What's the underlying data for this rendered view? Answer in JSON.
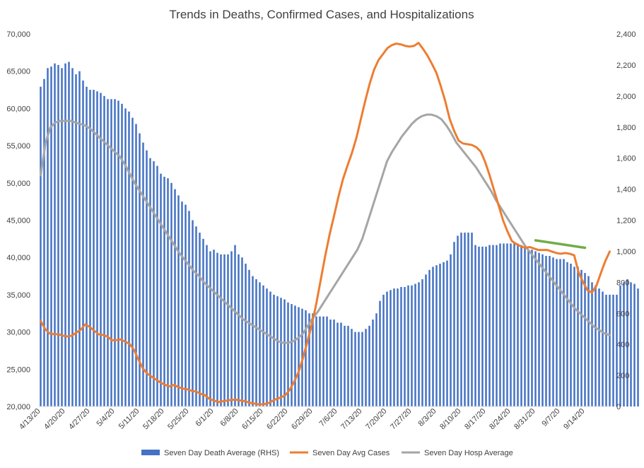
{
  "chart_data": {
    "type": "bar+line",
    "title": "Trends in Deaths, Confirmed Cases, and Hospitalizations",
    "x_start_date": "2020-04-13",
    "x_tick_labels": [
      "4/13/20",
      "4/20/20",
      "4/27/20",
      "5/4/20",
      "5/11/20",
      "5/18/20",
      "5/25/20",
      "6/1/20",
      "6/8/20",
      "6/15/20",
      "6/22/20",
      "6/29/20",
      "7/6/20",
      "7/13/20",
      "7/20/20",
      "7/27/20",
      "8/3/20",
      "8/10/20",
      "8/17/20",
      "8/24/20",
      "8/31/20",
      "9/7/20",
      "9/14/20"
    ],
    "y_left": {
      "min": 20000,
      "max": 70000,
      "ticks": [
        "20,000",
        "25,000",
        "30,000",
        "35,000",
        "40,000",
        "45,000",
        "50,000",
        "55,000",
        "60,000",
        "65,000",
        "70,000"
      ]
    },
    "y_right": {
      "min": 0,
      "max": 2400,
      "ticks": [
        "0",
        "200",
        "400",
        "600",
        "800",
        "1,000",
        "1,200",
        "1,400",
        "1,600",
        "1,800",
        "2,000",
        "2,200",
        "2,400"
      ]
    },
    "series": [
      {
        "name": "Seven Day Death Average (RHS)",
        "type": "bar",
        "axis": "right",
        "color": "#4472C4",
        "values": [
          2060,
          2110,
          2180,
          2190,
          2210,
          2200,
          2180,
          2210,
          2220,
          2180,
          2140,
          2160,
          2100,
          2060,
          2040,
          2040,
          2030,
          2020,
          2000,
          1980,
          1980,
          1980,
          1970,
          1950,
          1920,
          1900,
          1860,
          1820,
          1760,
          1700,
          1650,
          1600,
          1580,
          1550,
          1500,
          1480,
          1470,
          1440,
          1400,
          1360,
          1320,
          1300,
          1260,
          1200,
          1160,
          1120,
          1080,
          1040,
          1000,
          1010,
          990,
          980,
          980,
          980,
          1000,
          1040,
          980,
          960,
          920,
          880,
          840,
          820,
          800,
          780,
          760,
          740,
          720,
          710,
          700,
          690,
          670,
          660,
          650,
          640,
          630,
          620,
          600,
          600,
          580,
          580,
          580,
          580,
          560,
          560,
          540,
          540,
          520,
          520,
          500,
          480,
          480,
          480,
          500,
          520,
          560,
          600,
          680,
          720,
          740,
          750,
          760,
          760,
          770,
          770,
          780,
          780,
          790,
          800,
          820,
          850,
          880,
          900,
          910,
          920,
          930,
          940,
          980,
          1060,
          1100,
          1120,
          1120,
          1120,
          1120,
          1040,
          1030,
          1030,
          1030,
          1040,
          1040,
          1040,
          1050,
          1050,
          1050,
          1050,
          1050,
          1050,
          1040,
          1020,
          1010,
          1010,
          1000,
          990,
          980,
          970,
          970,
          960,
          950,
          950,
          950,
          930,
          920,
          900,
          900,
          880,
          860,
          840,
          800,
          780,
          760,
          740,
          720,
          720,
          720,
          720,
          780,
          800,
          820,
          800,
          790,
          760
        ]
      },
      {
        "name": "Seven Day Avg Cases",
        "type": "line",
        "axis": "left",
        "color": "#ED7D31",
        "values": [
          31500,
          30400,
          29800,
          29700,
          29700,
          29500,
          29400,
          29500,
          29900,
          30300,
          31000,
          30700,
          30200,
          29700,
          29600,
          29400,
          28900,
          28900,
          29000,
          28700,
          28400,
          27600,
          26300,
          25100,
          24400,
          24000,
          23600,
          23200,
          22900,
          22700,
          22900,
          22600,
          22400,
          22300,
          22100,
          22000,
          21700,
          21500,
          21000,
          20800,
          20600,
          20700,
          20800,
          20900,
          20900,
          20800,
          20700,
          20500,
          20400,
          20300,
          20300,
          20400,
          20700,
          21000,
          21200,
          21500,
          22200,
          23300,
          24600,
          26500,
          28700,
          31000,
          33800,
          37000,
          40200,
          43100,
          45600,
          48200,
          50500,
          52300,
          54000,
          56000,
          58500,
          61000,
          63300,
          65200,
          66500,
          67300,
          68100,
          68500,
          68700,
          68600,
          68400,
          68300,
          68400,
          68800,
          68000,
          67100,
          66000,
          64800,
          63000,
          61000,
          58600,
          57000,
          55700,
          55300,
          55200,
          55100,
          54800,
          54200,
          52800,
          51000,
          49000,
          47000,
          45000,
          43500,
          42200,
          41800,
          41500,
          41300,
          41400,
          41200,
          41000,
          41000,
          41000,
          40800,
          40600,
          40500,
          40600,
          40500,
          40300,
          38000,
          36700,
          35600,
          35300,
          36200,
          37900,
          39500,
          40800
        ]
      },
      {
        "name": "Seven Day Hosp Average",
        "type": "line",
        "axis": "right",
        "color": "#A5A5A5",
        "values": [
          1490,
          1700,
          1800,
          1830,
          1840,
          1840,
          1840,
          1830,
          1820,
          1810,
          1790,
          1760,
          1730,
          1700,
          1670,
          1640,
          1610,
          1560,
          1500,
          1440,
          1390,
          1340,
          1290,
          1240,
          1190,
          1140,
          1090,
          1040,
          990,
          950,
          910,
          870,
          840,
          800,
          770,
          740,
          710,
          680,
          650,
          620,
          590,
          560,
          540,
          520,
          500,
          480,
          460,
          440,
          420,
          410,
          410,
          420,
          440,
          470,
          520,
          570,
          610,
          660,
          710,
          760,
          810,
          860,
          910,
          960,
          1010,
          1080,
          1180,
          1280,
          1380,
          1480,
          1580,
          1640,
          1690,
          1740,
          1780,
          1820,
          1850,
          1870,
          1880,
          1880,
          1870,
          1850,
          1810,
          1760,
          1700,
          1660,
          1620,
          1580,
          1540,
          1490,
          1440,
          1390,
          1330,
          1280,
          1230,
          1180,
          1130,
          1080,
          1030,
          990,
          950,
          910,
          870,
          830,
          790,
          750,
          710,
          670,
          630,
          600,
          570,
          540,
          510,
          490,
          470,
          460
        ]
      },
      {
        "type": "line",
        "axis": "left",
        "color": "#70AD47",
        "points": [
          [
            140,
            42300
          ],
          [
            154,
            41300
          ]
        ]
      }
    ],
    "legend_position": "bottom",
    "grid": false
  }
}
